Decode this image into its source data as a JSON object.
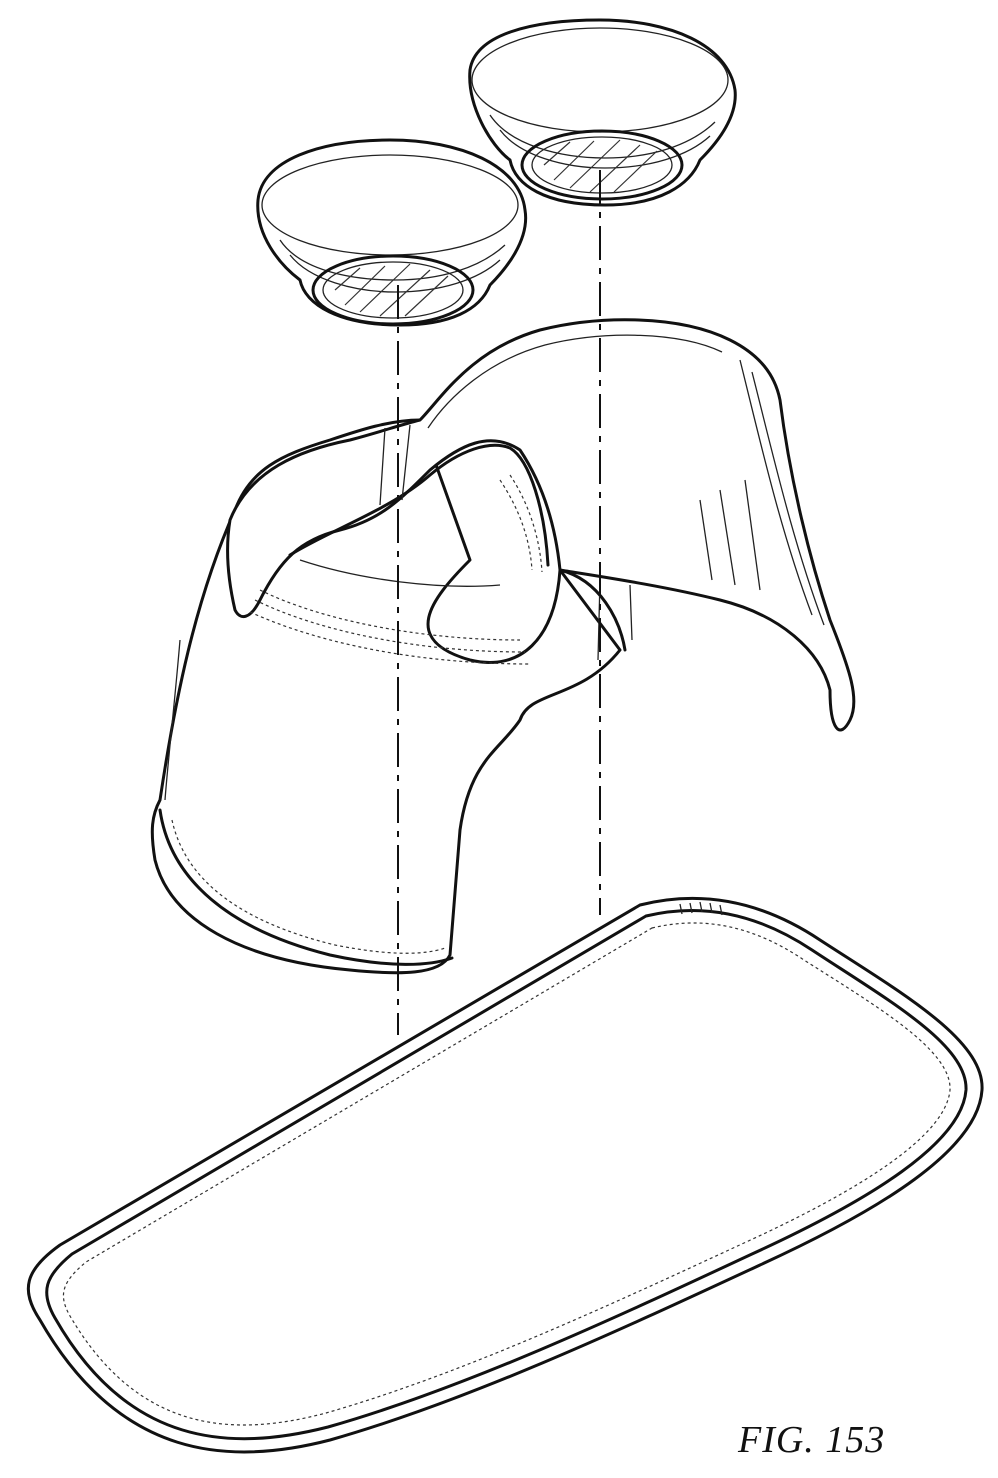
{
  "figure": {
    "label": "FIG. 153"
  },
  "colors": {
    "ink": "#111111",
    "paper": "#ffffff"
  },
  "parts": [
    "left-cup-icon",
    "right-cup-icon",
    "seat-shell-icon",
    "base-tray-icon"
  ]
}
